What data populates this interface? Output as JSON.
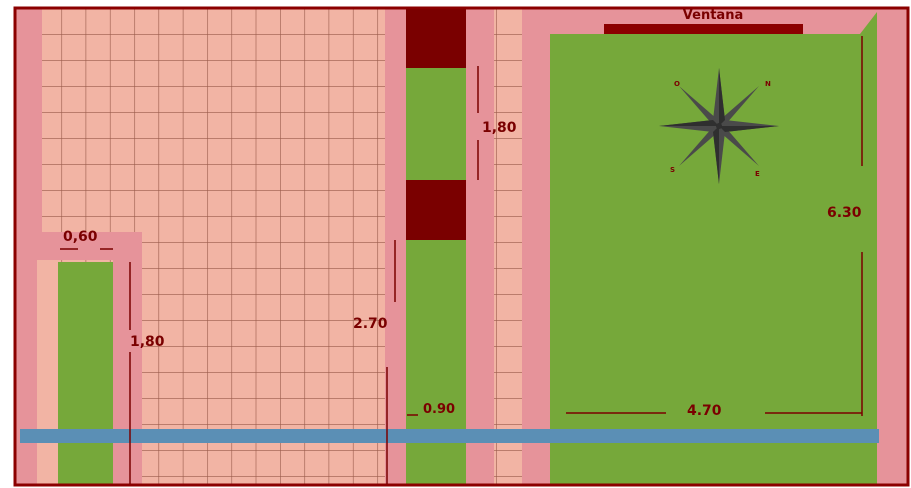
{
  "window_label": "Ventana",
  "compass": {
    "north": "N",
    "northwest": "O",
    "south": "S",
    "east": "E"
  },
  "dimensions": {
    "path_width": "0,60",
    "left_bed_length": "1,80",
    "center_left_length": "2.70",
    "center_bed_width": "0.90",
    "center_upper_length": "1,80",
    "garden_height": "6.30",
    "garden_width": "4.70"
  },
  "colors": {
    "frame": "#8b0000",
    "tile": "#f2b4a4",
    "tile_grid": "#9a5a4a",
    "pink_strip": "#e6939a",
    "grass": "#76a83a",
    "water": "#5b8fb5",
    "dark_block": "#7a0000"
  }
}
